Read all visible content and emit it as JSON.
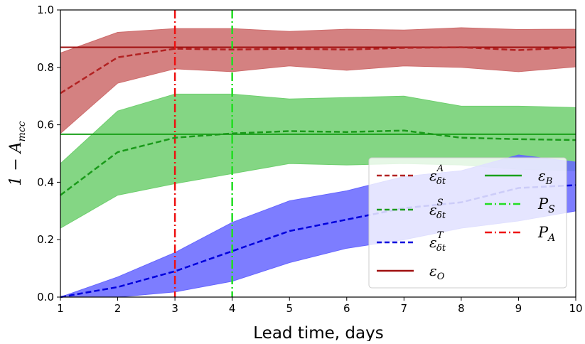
{
  "chart_data": {
    "type": "line",
    "xlabel": "Lead time, days",
    "ylabel": "1 − A",
    "ylabel_sub": "mcc",
    "xlim": [
      1,
      10
    ],
    "ylim": [
      0,
      1.0
    ],
    "xticks": [
      "1",
      "2",
      "3",
      "4",
      "5",
      "6",
      "7",
      "8",
      "9",
      "10"
    ],
    "yticks": [
      "0.0",
      "0.2",
      "0.4",
      "0.6",
      "0.8",
      "1.0"
    ],
    "x": [
      1,
      2,
      3,
      4,
      5,
      6,
      7,
      8,
      9,
      10
    ],
    "grid": false,
    "legend_position": "lower-right",
    "series": [
      {
        "name": "ε",
        "sub": "δt",
        "sup": "A",
        "color": "#b22222",
        "fill": "#cd6b6b",
        "style": "dashed",
        "values": [
          0.71,
          0.835,
          0.865,
          0.862,
          0.865,
          0.862,
          0.868,
          0.87,
          0.86,
          0.87
        ],
        "lower": [
          0.57,
          0.745,
          0.795,
          0.785,
          0.805,
          0.79,
          0.805,
          0.8,
          0.785,
          0.802
        ],
        "upper": [
          0.85,
          0.922,
          0.935,
          0.935,
          0.925,
          0.933,
          0.93,
          0.938,
          0.932,
          0.933
        ]
      },
      {
        "name": "ε",
        "sub": "δt",
        "sup": "S",
        "color": "#1a9a1a",
        "fill": "#6fcf6f",
        "style": "dashed",
        "values": [
          0.355,
          0.505,
          0.555,
          0.57,
          0.578,
          0.575,
          0.58,
          0.555,
          0.55,
          0.547
        ],
        "lower": [
          0.24,
          0.355,
          0.395,
          0.43,
          0.465,
          0.46,
          0.465,
          0.46,
          0.445,
          0.44
        ],
        "upper": [
          0.465,
          0.648,
          0.707,
          0.707,
          0.69,
          0.695,
          0.7,
          0.665,
          0.665,
          0.66
        ]
      },
      {
        "name": "ε",
        "sub": "δt",
        "sup": "T",
        "color": "#0000dd",
        "fill": "#6666ff",
        "style": "dashed",
        "values": [
          0.0,
          0.035,
          0.09,
          0.16,
          0.23,
          0.27,
          0.31,
          0.33,
          0.38,
          0.39
        ],
        "lower": [
          0.0,
          0.0,
          0.018,
          0.055,
          0.12,
          0.17,
          0.2,
          0.24,
          0.265,
          0.3
        ],
        "upper": [
          0.0,
          0.07,
          0.155,
          0.26,
          0.335,
          0.37,
          0.42,
          0.44,
          0.495,
          0.47
        ]
      }
    ],
    "hlines": [
      {
        "name": "ε",
        "sub": "O",
        "value": 0.87,
        "color": "#a01010",
        "style": "solid"
      },
      {
        "name": "ε",
        "sub": "B",
        "value": 0.567,
        "color": "#1aa01a",
        "style": "solid"
      }
    ],
    "vlines": [
      {
        "name": "P",
        "sub": "S",
        "value": 4,
        "color": "#22dd22",
        "style": "dashdot"
      },
      {
        "name": "P",
        "sub": "A",
        "value": 3,
        "color": "#ee1111",
        "style": "dashdot"
      }
    ]
  }
}
